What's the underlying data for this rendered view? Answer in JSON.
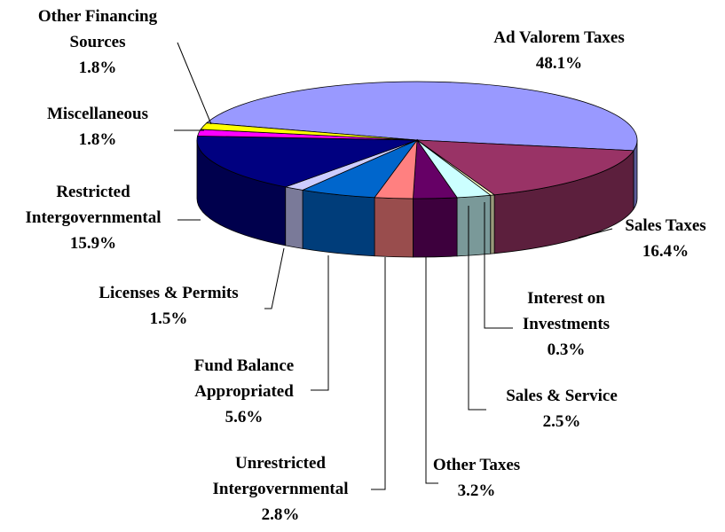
{
  "chart_data": {
    "type": "pie3d",
    "categories": [
      "Ad Valorem Taxes",
      "Sales Taxes",
      "Interest on Investments",
      "Sales & Service",
      "Other Taxes",
      "Unrestricted Intergovernmental",
      "Fund Balance Appropriated",
      "Licenses & Permits",
      "Restricted Intergovernmental",
      "Miscellaneous",
      "Other Financing Sources"
    ],
    "values": [
      48.1,
      16.4,
      0.3,
      2.5,
      3.2,
      2.8,
      5.6,
      1.5,
      15.9,
      1.8,
      1.8
    ],
    "value_labels": [
      "48.1%",
      "16.4%",
      "0.3%",
      "2.5%",
      "3.2%",
      "2.8%",
      "5.6%",
      "1.5%",
      "15.9%",
      "1.8%",
      "1.8%"
    ],
    "colors": [
      "#9999ff",
      "#993366",
      "#ffffcc",
      "#ccffff",
      "#660066",
      "#ff8080",
      "#0066cc",
      "#ccccff",
      "#000080",
      "#ff00ff",
      "#ffff00"
    ]
  }
}
